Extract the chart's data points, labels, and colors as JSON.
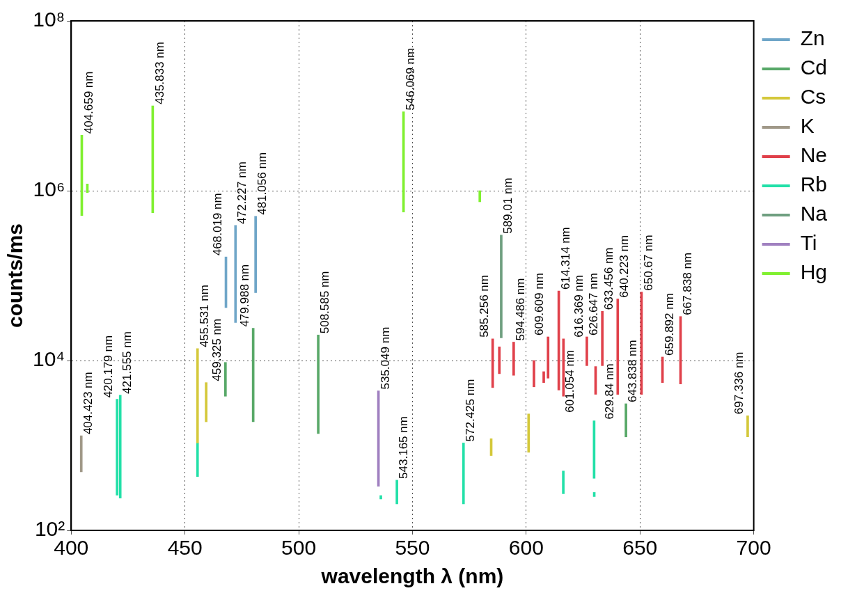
{
  "chart_data": {
    "type": "bar",
    "xlabel": "wavelength λ (nm)",
    "ylabel": "counts/ms",
    "xlim": [
      400,
      700
    ],
    "xticks": [
      400,
      450,
      500,
      550,
      600,
      650,
      700
    ],
    "ylim": [
      100,
      100000000
    ],
    "yticks": [
      {
        "value": 100,
        "label": "10²"
      },
      {
        "value": 10000,
        "label": "10⁴"
      },
      {
        "value": 1000000,
        "label": "10⁶"
      },
      {
        "value": 100000000,
        "label": "10⁸"
      }
    ],
    "log": "y",
    "grid": true,
    "legend": "top right",
    "series": [
      {
        "name": "Zn",
        "color": "#6fa6c8",
        "x": [
          468.019,
          472.227,
          481.056
        ],
        "base": [
          42000,
          28000,
          63000
        ],
        "values": [
          124000,
          362000,
          437000
        ]
      },
      {
        "name": "Cd",
        "color": "#58a868",
        "x": [
          467.8,
          479.988,
          508.585,
          643.838
        ],
        "base": [
          3800,
          1900,
          1380,
          1260
        ],
        "values": [
          5700,
          22100,
          18620,
          1840
        ]
      },
      {
        "name": "Cs",
        "color": "#d4c83a",
        "x": [
          455.531,
          459.325,
          584.6,
          601.054,
          697.336
        ],
        "base": [
          1070,
          1900,
          760,
          830,
          1260
        ],
        "values": [
          12730,
          3600,
          440,
          1520,
          980
        ]
      },
      {
        "name": "K",
        "color": "#a09888",
        "x": [
          404.423
        ],
        "base": [
          490
        ],
        "values": [
          810
        ]
      },
      {
        "name": "Ne",
        "color": "#e0404a",
        "x": [
          585.256,
          588.19,
          594.486,
          603.4,
          607.7,
          609.609,
          614.314,
          616.369,
          626.647,
          630.5,
          633.456,
          640.223,
          650.67,
          659.892,
          667.838
        ],
        "base": [
          4800,
          7000,
          6700,
          4900,
          5500,
          6200,
          4500,
          3800,
          8700,
          4000,
          8700,
          4000,
          4000,
          5500,
          5300
        ],
        "values": [
          13200,
          7500,
          9800,
          5100,
          1900,
          12800,
          61500,
          14200,
          10300,
          4500,
          29300,
          49000,
          60000,
          5500,
          27700
        ]
      },
      {
        "name": "Rb",
        "color": "#22e0a8",
        "x": [
          420.179,
          421.555,
          455.531,
          536.1,
          543.165,
          572.425,
          616.3,
          629.84,
          629.9
        ],
        "base": [
          260,
          240,
          430,
          234,
          205,
          205,
          270,
          410,
          250
        ],
        "values": [
          3240,
          3660,
          640,
          23,
          185,
          865,
          230,
          1540,
          30
        ]
      },
      {
        "name": "Na",
        "color": "#6f9f80",
        "x": [
          589.01
        ],
        "base": [
          18500
        ],
        "values": [
          281500
        ]
      },
      {
        "name": "Ti",
        "color": "#a080c0",
        "x": [
          535.049
        ],
        "base": [
          330
        ],
        "values": [
          4070
        ]
      },
      {
        "name": "Hg",
        "color": "#80f030",
        "x": [
          404.659,
          407.1,
          435.833,
          546.069,
          579.6
        ],
        "base": [
          510000,
          950000,
          550000,
          560000,
          740000
        ],
        "values": [
          3990000,
          250000,
          9450000,
          7940000,
          260000
        ]
      }
    ],
    "annotations": [
      {
        "text": "404.659 nm",
        "x": 404.659,
        "y": 4500000
      },
      {
        "text": "435.833 nm",
        "x": 435.833,
        "y": 10000000
      },
      {
        "text": "404.423 nm",
        "x": 404.423,
        "y": 1300
      },
      {
        "text": "420.179 nm",
        "x": 420.179,
        "y": 3500
      },
      {
        "text": "421.555 nm",
        "x": 421.555,
        "y": 3900
      },
      {
        "text": "455.531 nm",
        "x": 455.531,
        "y": 13800
      },
      {
        "text": "459.325 nm",
        "x": 459.325,
        "y": 5500
      },
      {
        "text": "468.019 nm",
        "x": 468.019,
        "y": 166000
      },
      {
        "text": "472.227 nm",
        "x": 472.227,
        "y": 390000
      },
      {
        "text": "481.056 nm",
        "x": 481.056,
        "y": 500000
      },
      {
        "text": "479.988 nm",
        "x": 479.988,
        "y": 24000
      },
      {
        "text": "508.585 nm",
        "x": 508.585,
        "y": 20000
      },
      {
        "text": "535.049 nm",
        "x": 535.049,
        "y": 4400
      },
      {
        "text": "543.165 nm",
        "x": 543.165,
        "y": 390
      },
      {
        "text": "546.069 nm",
        "x": 546.069,
        "y": 8500000
      },
      {
        "text": "572.425 nm",
        "x": 572.425,
        "y": 1070
      },
      {
        "text": "585.256 nm",
        "x": 585.256,
        "y": 18000
      },
      {
        "text": "589.01 nm",
        "x": 589.01,
        "y": 300000
      },
      {
        "text": "594.486 nm",
        "x": 594.486,
        "y": 16500
      },
      {
        "text": "601.054 nm",
        "x": 601.054,
        "y": 2350
      },
      {
        "text": "609.609 nm",
        "x": 609.609,
        "y": 19000
      },
      {
        "text": "614.314 nm",
        "x": 614.314,
        "y": 66000
      },
      {
        "text": "616.369 nm",
        "x": 616.369,
        "y": 18000
      },
      {
        "text": "626.647 nm",
        "x": 626.647,
        "y": 19000
      },
      {
        "text": "629.84 nm",
        "x": 629.84,
        "y": 1950
      },
      {
        "text": "633.456 nm",
        "x": 633.456,
        "y": 38000
      },
      {
        "text": "640.223 nm",
        "x": 640.223,
        "y": 53000
      },
      {
        "text": "643.838 nm",
        "x": 643.838,
        "y": 3100
      },
      {
        "text": "650.67 nm",
        "x": 650.67,
        "y": 64000
      },
      {
        "text": "659.892 nm",
        "x": 659.892,
        "y": 11000
      },
      {
        "text": "667.838 nm",
        "x": 667.838,
        "y": 33000
      },
      {
        "text": "697.336 nm",
        "x": 697.336,
        "y": 2240
      }
    ]
  }
}
